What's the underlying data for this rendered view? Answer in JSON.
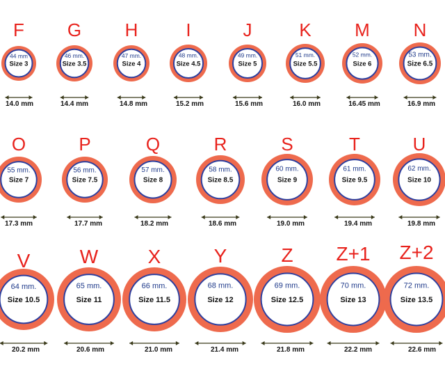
{
  "title": "",
  "colors": {
    "letter": "#e8221c",
    "ring_outer": "#ee6a4d",
    "ring_inner_line": "#2d3f9e",
    "ring_fill": "#ffffff",
    "arrow": "#3a3a1a"
  },
  "rings": [
    {
      "letter": "F",
      "circumference": "44 mm",
      "size": "Size 3",
      "diameter": "14.0 mm"
    },
    {
      "letter": "G",
      "circumference": "46 mm.",
      "size": "Size 3.5",
      "diameter": "14.4 mm"
    },
    {
      "letter": "H",
      "circumference": "47 mm.",
      "size": "Size 4",
      "diameter": "14.8 mm"
    },
    {
      "letter": "I",
      "circumference": "48 mm.",
      "size": "Size 4.5",
      "diameter": "15.2 mm"
    },
    {
      "letter": "J",
      "circumference": "49 mm.",
      "size": "Size 5",
      "diameter": "15.6 mm"
    },
    {
      "letter": "K",
      "circumference": "51 mm.",
      "size": "Size 5.5",
      "diameter": "16.0 mm"
    },
    {
      "letter": "M",
      "circumference": "52 mm.",
      "size": "Size 6",
      "diameter": "16.45 mm"
    },
    {
      "letter": "N",
      "circumference": "53 mm.",
      "size": "Size 6.5",
      "diameter": "16.9 mm"
    },
    {
      "letter": "O",
      "circumference": "55 mm.",
      "size": "Size 7",
      "diameter": "17.3 mm"
    },
    {
      "letter": "P",
      "circumference": "56 mm.",
      "size": "Size 7.5",
      "diameter": "17.7 mm"
    },
    {
      "letter": "Q",
      "circumference": "57 mm.",
      "size": "Size 8",
      "diameter": "18.2 mm"
    },
    {
      "letter": "R",
      "circumference": "58 mm.",
      "size": "Size 8.5",
      "diameter": "18.6 mm"
    },
    {
      "letter": "S",
      "circumference": "60 mm.",
      "size": "Size 9",
      "diameter": "19.0 mm"
    },
    {
      "letter": "T",
      "circumference": "61 mm.",
      "size": "Size 9.5",
      "diameter": "19.4 mm"
    },
    {
      "letter": "U",
      "circumference": "62 mm.",
      "size": "Size 10",
      "diameter": "19.8 mm"
    },
    {
      "letter": "V",
      "circumference": "64 mm.",
      "size": "Size 10.5",
      "diameter": "20.2 mm"
    },
    {
      "letter": "W",
      "circumference": "65 mm.",
      "size": "Size 11",
      "diameter": "20.6 mm"
    },
    {
      "letter": "X",
      "circumference": "66 mm.",
      "size": "Size 11.5",
      "diameter": "21.0 mm"
    },
    {
      "letter": "Y",
      "circumference": "68 mm.",
      "size": "Size 12",
      "diameter": "21.4 mm"
    },
    {
      "letter": "Z",
      "circumference": "69 mm.",
      "size": "Size 12.5",
      "diameter": "21.8 mm"
    },
    {
      "letter": "Z+1",
      "circumference": "70 mm.",
      "size": "Size 13",
      "diameter": "22.2 mm"
    },
    {
      "letter": "Z+2",
      "circumference": "72 mm.",
      "size": "Size 13.5",
      "diameter": "22.6 mm"
    }
  ]
}
